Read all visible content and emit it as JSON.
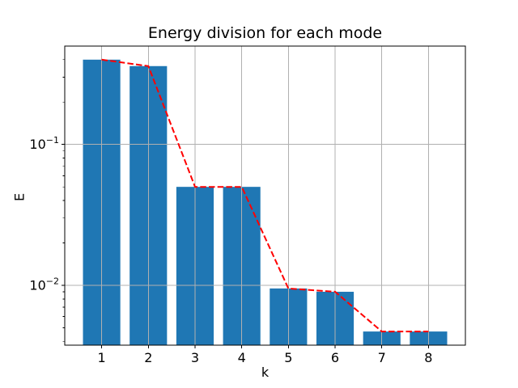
{
  "chart_data": {
    "type": "bar",
    "title": "Energy division for each mode",
    "xlabel": "k",
    "ylabel": "E",
    "categories": [
      1,
      2,
      3,
      4,
      5,
      6,
      7,
      8
    ],
    "series": [
      {
        "name": "energy-bars",
        "type": "bar",
        "color": "#1f77b4",
        "values": [
          0.4,
          0.36,
          0.05,
          0.05,
          0.0095,
          0.009,
          0.0047,
          0.0047
        ]
      },
      {
        "name": "energy-line",
        "type": "line",
        "color": "#ff0000",
        "linestyle": "dashed",
        "values": [
          0.4,
          0.36,
          0.05,
          0.05,
          0.0095,
          0.009,
          0.0047,
          0.0047
        ]
      }
    ],
    "yscale": "log",
    "xlim": [
      0.21,
      8.79
    ],
    "ylim": [
      0.00376,
      0.4994
    ],
    "bar_width": 0.8,
    "grid": true,
    "grid_color": "#b0b0b0",
    "spine_color": "#000000",
    "background": "#ffffff",
    "xtick_labels": [
      "1",
      "2",
      "3",
      "4",
      "5",
      "6",
      "7",
      "8"
    ],
    "ytick_labels": [
      {
        "value": 0.1,
        "base": "10",
        "exp": "−1"
      },
      {
        "value": 0.01,
        "base": "10",
        "exp": "−2"
      }
    ]
  }
}
